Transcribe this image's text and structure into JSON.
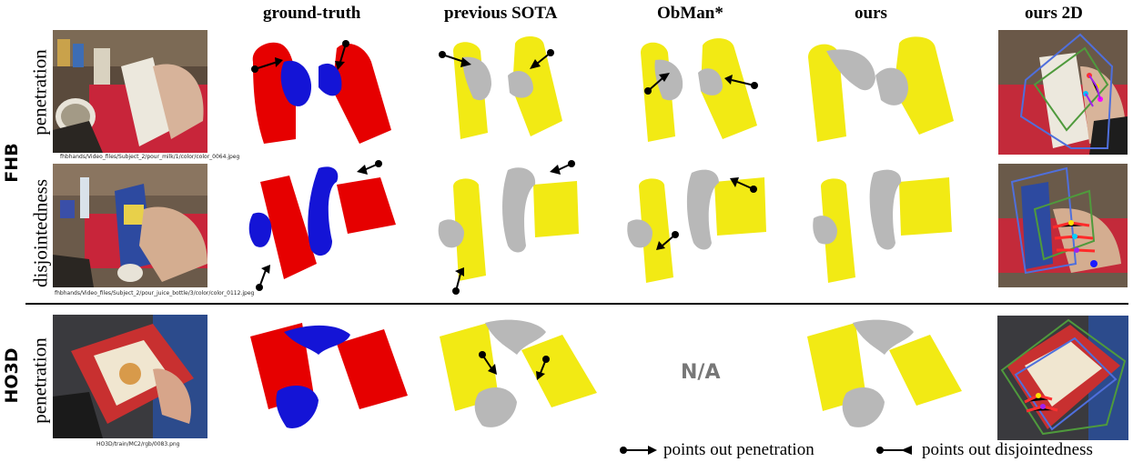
{
  "columns": [
    "ground-truth",
    "previous SOTA",
    "ObMan*",
    "ours",
    "ours 2D"
  ],
  "groups": {
    "fhb": "FHB",
    "ho3d": "HO3D"
  },
  "rows": {
    "fhb_penetration": {
      "label": "penetration",
      "caption": "fhbhands/Video_files/Subject_2/pour_milk/1/color/color_0064.jpeg"
    },
    "fhb_disjointedness": {
      "label": "disjointedness",
      "caption": "fhbhands/Video_files/Subject_2/pour_juice_bottle/3/color/color_0112.jpeg"
    },
    "ho3d_penetration": {
      "label": "penetration",
      "caption": "HO3D/train/MC2/rgb/0083.png"
    }
  },
  "na_text": "N/A",
  "legend": {
    "penetration": "points out penetration",
    "disjointedness": "points out disjointedness"
  },
  "colors": {
    "ground_truth_object": "#e60000",
    "ground_truth_hand": "#1414d6",
    "prediction_object": "#f2ea14",
    "prediction_hand": "#b8b8b8",
    "na_gray": "#777777"
  }
}
